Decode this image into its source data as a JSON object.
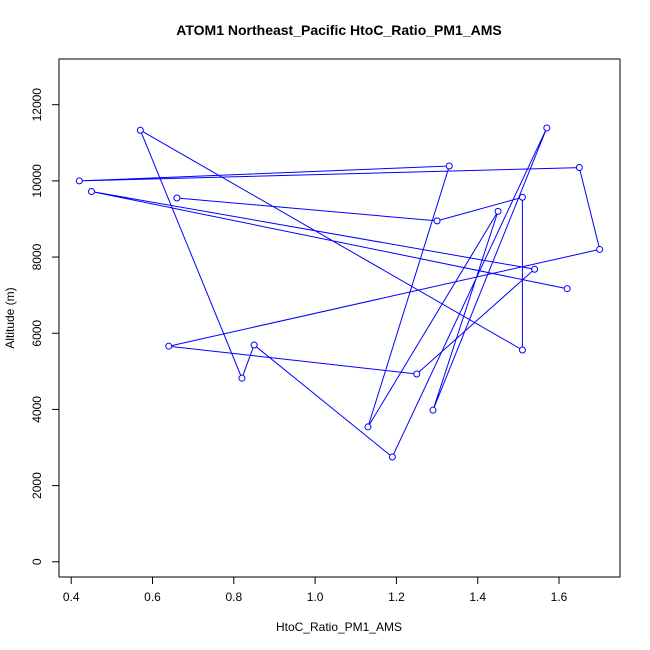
{
  "chart_data": {
    "type": "line",
    "title": "ATOM1 Northeast_Pacific HtoC_Ratio_PM1_AMS",
    "xlabel": "HtoC_Ratio_PM1_AMS",
    "ylabel": "Altitude (m)",
    "xlim": [
      0.37,
      1.75
    ],
    "ylim": [
      -400,
      13200
    ],
    "xticks": [
      "0.4",
      "0.6",
      "0.8",
      "1.0",
      "1.2",
      "1.4",
      "1.6"
    ],
    "xtick_values": [
      0.4,
      0.6,
      0.8,
      1.0,
      1.2,
      1.4,
      1.6
    ],
    "yticks": [
      "0",
      "2000",
      "4000",
      "6000",
      "8000",
      "10000",
      "12000"
    ],
    "ytick_values": [
      0,
      2000,
      4000,
      6000,
      8000,
      10000,
      12000
    ],
    "grid": false,
    "series": [
      {
        "color": "#0000ff",
        "marker": "open-circle",
        "points": [
          {
            "x": 1.62,
            "y": 7170
          },
          {
            "x": 0.45,
            "y": 9720
          },
          {
            "x": 1.54,
            "y": 7680
          },
          {
            "x": 1.25,
            "y": 4930
          },
          {
            "x": 0.64,
            "y": 5660
          },
          {
            "x": 1.7,
            "y": 8200
          },
          {
            "x": 1.65,
            "y": 10350
          },
          {
            "x": 0.42,
            "y": 10000
          },
          {
            "x": 1.33,
            "y": 10390
          },
          {
            "x": 1.13,
            "y": 3540
          },
          {
            "x": 1.45,
            "y": 9200
          },
          {
            "x": 1.29,
            "y": 3980
          },
          {
            "x": 1.57,
            "y": 11390
          },
          {
            "x": 1.19,
            "y": 2750
          },
          {
            "x": 0.85,
            "y": 5690
          },
          {
            "x": 0.82,
            "y": 4820
          },
          {
            "x": 0.57,
            "y": 11330
          },
          {
            "x": 1.51,
            "y": 5560
          },
          {
            "x": 1.51,
            "y": 9570
          },
          {
            "x": 1.3,
            "y": 8950
          },
          {
            "x": 0.66,
            "y": 9550
          }
        ]
      }
    ]
  }
}
